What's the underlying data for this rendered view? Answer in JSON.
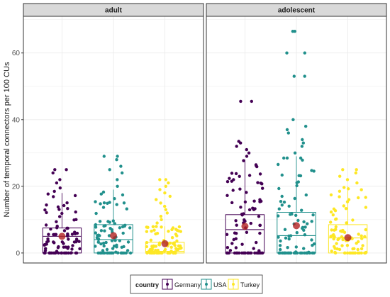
{
  "chart_data": {
    "type": "boxplot",
    "ylabel": "Number of temporal connectors per 100 CUs",
    "ylim": [
      -3,
      71
    ],
    "yticks": [
      0,
      20,
      40,
      60
    ],
    "grid": true,
    "legend": {
      "title": "country",
      "position": "bottom",
      "entries": [
        "Germany",
        "USA",
        "Turkey"
      ]
    },
    "colors": {
      "Germany": "#440154",
      "USA": "#21908c",
      "Turkey": "#fde725",
      "mean": "#b22222"
    },
    "facets": [
      {
        "label": "adult",
        "boxes": [
          {
            "country": "Germany",
            "whisker_low": 0,
            "q1": 0,
            "median": 5.0,
            "q3": 7.5,
            "whisker_high": 18,
            "mean": 5.0
          },
          {
            "country": "USA",
            "whisker_low": 0,
            "q1": 0,
            "median": 4.0,
            "q3": 8.5,
            "whisker_high": 19,
            "mean": 5.2
          },
          {
            "country": "Turkey",
            "whisker_low": 0,
            "q1": 0,
            "median": 0.5,
            "q3": 3.2,
            "whisker_high": 8,
            "mean": 2.8
          }
        ],
        "outliers": {
          "Germany": [
            18.5,
            19.5,
            21,
            22,
            24,
            25,
            25
          ],
          "USA": [
            20,
            22,
            24,
            25,
            26,
            28,
            29,
            29
          ],
          "Turkey": [
            9,
            10,
            11,
            12,
            13,
            14,
            15,
            16,
            17,
            18,
            19,
            20,
            21,
            22,
            22
          ]
        }
      },
      {
        "label": "adolescent",
        "boxes": [
          {
            "country": "Germany",
            "whisker_low": 0,
            "q1": 0,
            "median": 7.0,
            "q3": 11.5,
            "whisker_high": 28,
            "mean": 8.0
          },
          {
            "country": "USA",
            "whisker_low": 0,
            "q1": 0,
            "median": 5.2,
            "q3": 12.2,
            "whisker_high": 29,
            "mean": 8.2
          },
          {
            "country": "Turkey",
            "whisker_low": 0,
            "q1": 0,
            "median": 4.5,
            "q3": 8.5,
            "whisker_high": 20,
            "mean": 4.6
          }
        ],
        "outliers": {
          "Germany": [
            29,
            30,
            31,
            32,
            33,
            33.5,
            45.5,
            45.5
          ],
          "USA": [
            30,
            32,
            33,
            34,
            36,
            37,
            38,
            40,
            53,
            53,
            60,
            60,
            66.5,
            66.5
          ],
          "Turkey": [
            21,
            22,
            23,
            24,
            25,
            25
          ]
        }
      }
    ]
  }
}
